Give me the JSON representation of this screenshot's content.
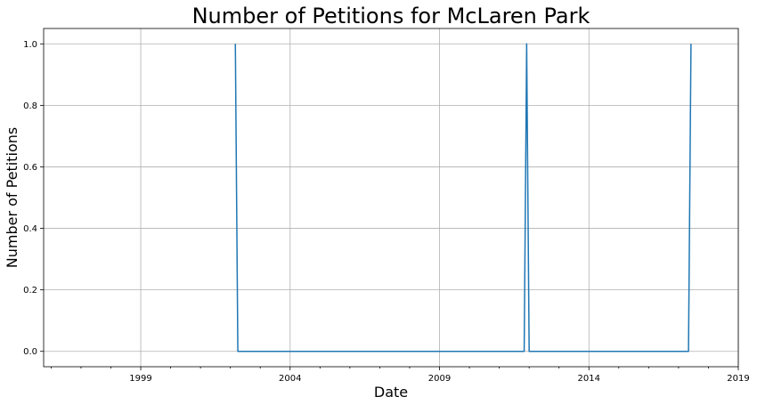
{
  "chart_data": {
    "type": "line",
    "title": "Number of Petitions for McLaren Park",
    "xlabel": "Date",
    "ylabel": "Number of Petitions",
    "x_ticks": [
      "1999",
      "2004",
      "2009",
      "2014",
      "2019"
    ],
    "y_ticks": [
      "0.0",
      "0.2",
      "0.4",
      "0.6",
      "0.8",
      "1.0"
    ],
    "xlim": [
      "1995-10",
      "2019-01"
    ],
    "ylim": [
      -0.05,
      1.05
    ],
    "grid": true,
    "series": [
      {
        "color": "#1f77b4",
        "points": [
          {
            "x": "2002-03",
            "y": 1
          },
          {
            "x": "2002-04",
            "y": 0
          },
          {
            "x": "2011-11",
            "y": 0
          },
          {
            "x": "2011-12",
            "y": 1
          },
          {
            "x": "2012-01",
            "y": 0
          },
          {
            "x": "2017-05",
            "y": 0
          },
          {
            "x": "2017-06",
            "y": 1
          }
        ]
      }
    ]
  }
}
